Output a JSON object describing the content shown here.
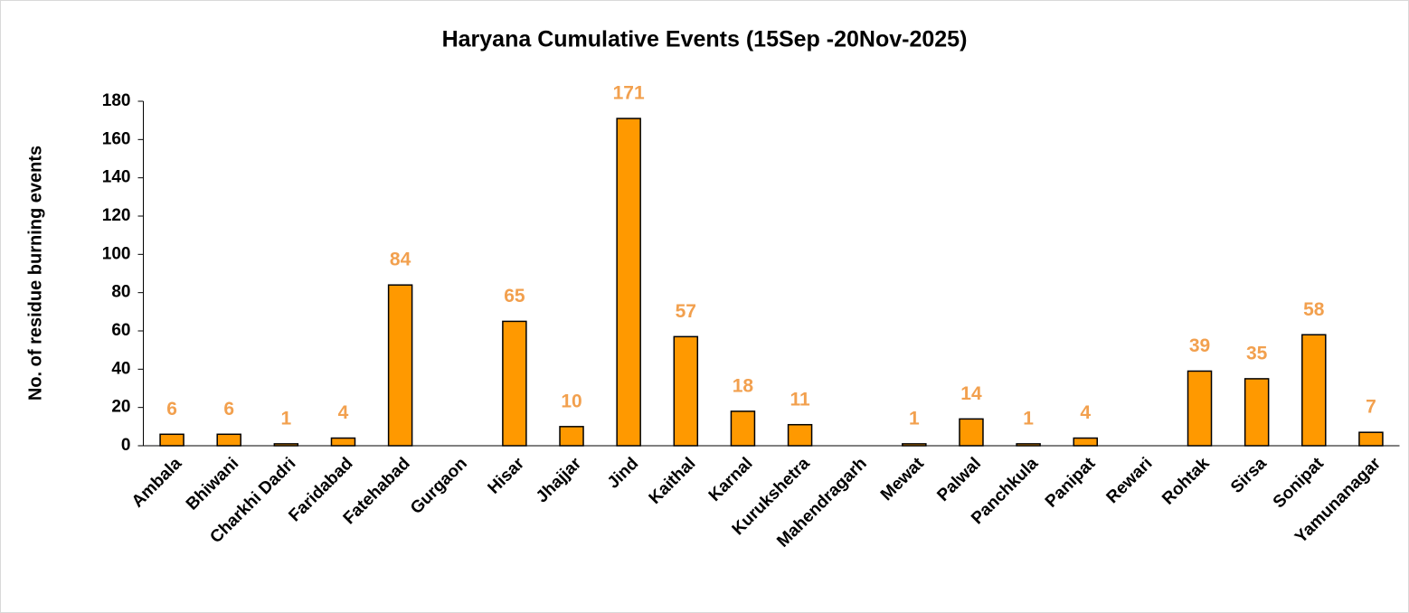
{
  "chart_data": {
    "type": "bar",
    "title": "Haryana Cumulative Events (15Sep -20Nov-2025)",
    "y_label": "No. of residue burning events",
    "categories": [
      "Ambala",
      "Bhiwani",
      "Charkhi Dadri",
      "Faridabad",
      "Fatehabad",
      "Gurgaon",
      "Hisar",
      "Jhajjar",
      "Jind",
      "Kaithal",
      "Karnal",
      "Kurukshetra",
      "Mahendragarh",
      "Mewat",
      "Palwal",
      "Panchkula",
      "Panipat",
      "Rewari",
      "Rohtak",
      "Sirsa",
      "Sonipat",
      "Yamunanagar"
    ],
    "values": [
      6,
      6,
      1,
      4,
      84,
      null,
      65,
      10,
      171,
      57,
      18,
      11,
      null,
      1,
      14,
      1,
      4,
      null,
      39,
      35,
      58,
      7
    ],
    "color": "#ff9900",
    "label_color": "#f2a04e",
    "ylim": [
      0,
      180
    ],
    "yticks": [
      0,
      20,
      40,
      60,
      80,
      100,
      120,
      140,
      160,
      180
    ],
    "grid": false
  }
}
